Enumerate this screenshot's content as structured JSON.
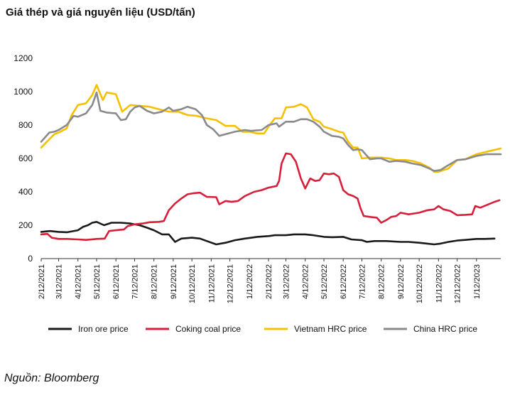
{
  "page": {
    "title": "Giá thép và giá nguyên liệu (USD/tấn)",
    "source": "Nguồn: Bloomberg"
  },
  "chart_data": {
    "type": "line",
    "title": "Giá thép và giá nguyên liệu (USD/tấn)",
    "ylim": [
      0,
      1200
    ],
    "yticks": [
      0,
      200,
      400,
      600,
      800,
      1000,
      1200
    ],
    "xlim": [
      "2021-02-12",
      "2023-02-20"
    ],
    "xticks": [
      "2/12/2021",
      "3/12/2021",
      "4/12/2021",
      "5/12/2021",
      "6/12/2021",
      "7/12/2021",
      "8/12/2021",
      "9/12/2021",
      "10/12/2021",
      "11/12/2021",
      "12/12/2021",
      "1/12/2022",
      "2/12/2022",
      "3/12/2022",
      "4/12/2022",
      "5/12/2022",
      "6/12/2022",
      "7/12/2022",
      "8/12/2022",
      "9/12/2022",
      "10/12/2022",
      "11/12/2022",
      "12/12/2022",
      "1/12/2023"
    ],
    "legend_position": "bottom",
    "grid": false,
    "series": [
      {
        "name": "Iron ore price",
        "color": "#1a1a1a",
        "points": [
          [
            "2021-02-12",
            160
          ],
          [
            "2021-02-26",
            165
          ],
          [
            "2021-03-12",
            160
          ],
          [
            "2021-03-26",
            158
          ],
          [
            "2021-04-12",
            170
          ],
          [
            "2021-04-20",
            190
          ],
          [
            "2021-04-28",
            200
          ],
          [
            "2021-05-05",
            215
          ],
          [
            "2021-05-12",
            220
          ],
          [
            "2021-05-24",
            200
          ],
          [
            "2021-06-05",
            215
          ],
          [
            "2021-06-20",
            215
          ],
          [
            "2021-07-05",
            210
          ],
          [
            "2021-07-20",
            200
          ],
          [
            "2021-08-01",
            185
          ],
          [
            "2021-08-12",
            170
          ],
          [
            "2021-08-25",
            145
          ],
          [
            "2021-09-05",
            145
          ],
          [
            "2021-09-15",
            100
          ],
          [
            "2021-09-25",
            120
          ],
          [
            "2021-10-12",
            125
          ],
          [
            "2021-10-25",
            120
          ],
          [
            "2021-11-05",
            105
          ],
          [
            "2021-11-20",
            85
          ],
          [
            "2021-12-05",
            95
          ],
          [
            "2021-12-20",
            110
          ],
          [
            "2022-01-05",
            120
          ],
          [
            "2022-01-25",
            130
          ],
          [
            "2022-02-12",
            135
          ],
          [
            "2022-02-22",
            140
          ],
          [
            "2022-03-12",
            140
          ],
          [
            "2022-03-25",
            145
          ],
          [
            "2022-04-12",
            145
          ],
          [
            "2022-04-25",
            140
          ],
          [
            "2022-05-12",
            130
          ],
          [
            "2022-05-25",
            128
          ],
          [
            "2022-06-12",
            130
          ],
          [
            "2022-06-25",
            115
          ],
          [
            "2022-07-12",
            110
          ],
          [
            "2022-07-20",
            100
          ],
          [
            "2022-08-01",
            105
          ],
          [
            "2022-08-20",
            105
          ],
          [
            "2022-09-12",
            100
          ],
          [
            "2022-09-25",
            100
          ],
          [
            "2022-10-12",
            95
          ],
          [
            "2022-10-25",
            90
          ],
          [
            "2022-11-05",
            85
          ],
          [
            "2022-11-15",
            90
          ],
          [
            "2022-11-28",
            100
          ],
          [
            "2022-12-12",
            108
          ],
          [
            "2022-12-25",
            112
          ],
          [
            "2023-01-12",
            118
          ],
          [
            "2023-01-25",
            118
          ],
          [
            "2023-02-10",
            120
          ]
        ]
      },
      {
        "name": "Coking coal price",
        "color": "#d71f3a",
        "points": [
          [
            "2021-02-12",
            145
          ],
          [
            "2021-02-22",
            148
          ],
          [
            "2021-03-01",
            125
          ],
          [
            "2021-03-12",
            118
          ],
          [
            "2021-03-26",
            118
          ],
          [
            "2021-04-12",
            115
          ],
          [
            "2021-04-25",
            112
          ],
          [
            "2021-05-12",
            118
          ],
          [
            "2021-05-25",
            120
          ],
          [
            "2021-06-01",
            165
          ],
          [
            "2021-06-12",
            170
          ],
          [
            "2021-06-25",
            175
          ],
          [
            "2021-07-01",
            195
          ],
          [
            "2021-07-12",
            205
          ],
          [
            "2021-07-25",
            210
          ],
          [
            "2021-08-05",
            218
          ],
          [
            "2021-08-20",
            220
          ],
          [
            "2021-08-28",
            225
          ],
          [
            "2021-09-05",
            290
          ],
          [
            "2021-09-15",
            330
          ],
          [
            "2021-09-25",
            360
          ],
          [
            "2021-10-05",
            385
          ],
          [
            "2021-10-15",
            392
          ],
          [
            "2021-10-25",
            395
          ],
          [
            "2021-11-05",
            370
          ],
          [
            "2021-11-20",
            368
          ],
          [
            "2021-11-25",
            325
          ],
          [
            "2021-12-05",
            345
          ],
          [
            "2021-12-15",
            340
          ],
          [
            "2021-12-25",
            345
          ],
          [
            "2022-01-05",
            375
          ],
          [
            "2022-01-20",
            400
          ],
          [
            "2022-02-01",
            410
          ],
          [
            "2022-02-12",
            425
          ],
          [
            "2022-02-25",
            435
          ],
          [
            "2022-03-01",
            465
          ],
          [
            "2022-03-05",
            570
          ],
          [
            "2022-03-12",
            630
          ],
          [
            "2022-03-20",
            625
          ],
          [
            "2022-03-28",
            580
          ],
          [
            "2022-04-05",
            480
          ],
          [
            "2022-04-12",
            420
          ],
          [
            "2022-04-20",
            480
          ],
          [
            "2022-04-28",
            465
          ],
          [
            "2022-05-05",
            470
          ],
          [
            "2022-05-12",
            510
          ],
          [
            "2022-05-20",
            505
          ],
          [
            "2022-05-28",
            510
          ],
          [
            "2022-06-05",
            490
          ],
          [
            "2022-06-12",
            410
          ],
          [
            "2022-06-20",
            385
          ],
          [
            "2022-06-28",
            375
          ],
          [
            "2022-07-05",
            360
          ],
          [
            "2022-07-10",
            300
          ],
          [
            "2022-07-15",
            255
          ],
          [
            "2022-07-25",
            250
          ],
          [
            "2022-08-05",
            245
          ],
          [
            "2022-08-12",
            215
          ],
          [
            "2022-08-20",
            230
          ],
          [
            "2022-08-28",
            250
          ],
          [
            "2022-09-05",
            255
          ],
          [
            "2022-09-12",
            275
          ],
          [
            "2022-09-25",
            265
          ],
          [
            "2022-10-12",
            275
          ],
          [
            "2022-10-25",
            290
          ],
          [
            "2022-11-05",
            295
          ],
          [
            "2022-11-12",
            315
          ],
          [
            "2022-11-20",
            295
          ],
          [
            "2022-12-01",
            285
          ],
          [
            "2022-12-12",
            260
          ],
          [
            "2022-12-25",
            262
          ],
          [
            "2023-01-05",
            265
          ],
          [
            "2023-01-10",
            315
          ],
          [
            "2023-01-18",
            305
          ],
          [
            "2023-01-28",
            320
          ],
          [
            "2023-02-10",
            340
          ],
          [
            "2023-02-18",
            350
          ]
        ]
      },
      {
        "name": "Vietnam HRC price",
        "color": "#f5c000",
        "points": [
          [
            "2021-02-12",
            665
          ],
          [
            "2021-02-25",
            715
          ],
          [
            "2021-03-05",
            745
          ],
          [
            "2021-03-12",
            755
          ],
          [
            "2021-03-25",
            780
          ],
          [
            "2021-04-02",
            860
          ],
          [
            "2021-04-12",
            920
          ],
          [
            "2021-04-25",
            930
          ],
          [
            "2021-05-05",
            980
          ],
          [
            "2021-05-12",
            1040
          ],
          [
            "2021-05-22",
            950
          ],
          [
            "2021-05-28",
            995
          ],
          [
            "2021-06-12",
            985
          ],
          [
            "2021-06-22",
            880
          ],
          [
            "2021-07-05",
            920
          ],
          [
            "2021-07-20",
            915
          ],
          [
            "2021-08-05",
            910
          ],
          [
            "2021-08-20",
            895
          ],
          [
            "2021-09-05",
            880
          ],
          [
            "2021-09-20",
            880
          ],
          [
            "2021-10-05",
            860
          ],
          [
            "2021-10-20",
            855
          ],
          [
            "2021-11-05",
            840
          ],
          [
            "2021-11-20",
            830
          ],
          [
            "2021-12-05",
            795
          ],
          [
            "2021-12-20",
            795
          ],
          [
            "2022-01-01",
            760
          ],
          [
            "2022-01-12",
            760
          ],
          [
            "2022-01-25",
            750
          ],
          [
            "2022-02-05",
            750
          ],
          [
            "2022-02-12",
            790
          ],
          [
            "2022-02-22",
            840
          ],
          [
            "2022-03-05",
            840
          ],
          [
            "2022-03-12",
            905
          ],
          [
            "2022-03-25",
            910
          ],
          [
            "2022-04-05",
            925
          ],
          [
            "2022-04-15",
            905
          ],
          [
            "2022-04-25",
            835
          ],
          [
            "2022-05-05",
            820
          ],
          [
            "2022-05-12",
            790
          ],
          [
            "2022-05-25",
            775
          ],
          [
            "2022-06-05",
            760
          ],
          [
            "2022-06-12",
            755
          ],
          [
            "2022-06-20",
            700
          ],
          [
            "2022-06-28",
            665
          ],
          [
            "2022-07-05",
            665
          ],
          [
            "2022-07-12",
            600
          ],
          [
            "2022-07-25",
            605
          ],
          [
            "2022-08-12",
            605
          ],
          [
            "2022-08-25",
            600
          ],
          [
            "2022-09-05",
            590
          ],
          [
            "2022-09-20",
            590
          ],
          [
            "2022-10-01",
            585
          ],
          [
            "2022-10-15",
            570
          ],
          [
            "2022-10-28",
            545
          ],
          [
            "2022-11-05",
            520
          ],
          [
            "2022-11-12",
            520
          ],
          [
            "2022-11-28",
            540
          ],
          [
            "2022-12-12",
            590
          ],
          [
            "2022-12-25",
            595
          ],
          [
            "2023-01-12",
            625
          ],
          [
            "2023-01-28",
            640
          ],
          [
            "2023-02-20",
            660
          ]
        ]
      },
      {
        "name": "China HRC price",
        "color": "#8a8a8a",
        "points": [
          [
            "2021-02-12",
            700
          ],
          [
            "2021-02-25",
            755
          ],
          [
            "2021-03-05",
            760
          ],
          [
            "2021-03-12",
            770
          ],
          [
            "2021-03-25",
            800
          ],
          [
            "2021-04-05",
            855
          ],
          [
            "2021-04-12",
            850
          ],
          [
            "2021-04-25",
            870
          ],
          [
            "2021-05-05",
            920
          ],
          [
            "2021-05-12",
            995
          ],
          [
            "2021-05-18",
            885
          ],
          [
            "2021-05-28",
            875
          ],
          [
            "2021-06-12",
            870
          ],
          [
            "2021-06-20",
            830
          ],
          [
            "2021-06-28",
            835
          ],
          [
            "2021-07-05",
            880
          ],
          [
            "2021-07-12",
            905
          ],
          [
            "2021-07-20",
            915
          ],
          [
            "2021-08-01",
            885
          ],
          [
            "2021-08-12",
            870
          ],
          [
            "2021-08-25",
            880
          ],
          [
            "2021-09-05",
            905
          ],
          [
            "2021-09-12",
            885
          ],
          [
            "2021-09-25",
            895
          ],
          [
            "2021-10-05",
            910
          ],
          [
            "2021-10-18",
            895
          ],
          [
            "2021-10-28",
            860
          ],
          [
            "2021-11-05",
            800
          ],
          [
            "2021-11-15",
            775
          ],
          [
            "2021-11-25",
            735
          ],
          [
            "2021-12-05",
            745
          ],
          [
            "2021-12-20",
            760
          ],
          [
            "2022-01-05",
            770
          ],
          [
            "2022-01-15",
            765
          ],
          [
            "2022-02-01",
            770
          ],
          [
            "2022-02-12",
            800
          ],
          [
            "2022-02-25",
            810
          ],
          [
            "2022-03-01",
            790
          ],
          [
            "2022-03-12",
            820
          ],
          [
            "2022-03-25",
            820
          ],
          [
            "2022-04-05",
            835
          ],
          [
            "2022-04-15",
            835
          ],
          [
            "2022-04-25",
            820
          ],
          [
            "2022-05-05",
            790
          ],
          [
            "2022-05-12",
            760
          ],
          [
            "2022-05-25",
            735
          ],
          [
            "2022-06-05",
            730
          ],
          [
            "2022-06-12",
            720
          ],
          [
            "2022-06-20",
            680
          ],
          [
            "2022-06-28",
            650
          ],
          [
            "2022-07-05",
            655
          ],
          [
            "2022-07-12",
            650
          ],
          [
            "2022-07-25",
            595
          ],
          [
            "2022-08-05",
            600
          ],
          [
            "2022-08-12",
            600
          ],
          [
            "2022-08-25",
            580
          ],
          [
            "2022-09-05",
            585
          ],
          [
            "2022-09-20",
            580
          ],
          [
            "2022-10-01",
            570
          ],
          [
            "2022-10-15",
            560
          ],
          [
            "2022-10-28",
            540
          ],
          [
            "2022-11-05",
            525
          ],
          [
            "2022-11-15",
            530
          ],
          [
            "2022-11-28",
            560
          ],
          [
            "2022-12-12",
            590
          ],
          [
            "2022-12-25",
            595
          ],
          [
            "2023-01-12",
            615
          ],
          [
            "2023-01-28",
            625
          ],
          [
            "2023-02-20",
            625
          ]
        ]
      }
    ]
  }
}
